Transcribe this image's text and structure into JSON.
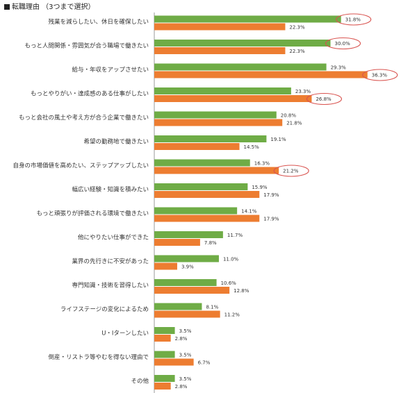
{
  "chart_data": {
    "type": "bar",
    "orientation": "horizontal",
    "title": "転職理由 （3つまで選択）",
    "categories": [
      "残業を減らしたい、休日を確保したい",
      "もっと人間関係・雰囲気が合う職場で働きたい",
      "給与・年収をアップさせたい",
      "もっとやりがい・達成感のある仕事がしたい",
      "もっと会社の風土や考え方が合う企業で働きたい",
      "希望の勤務地で働きたい",
      "自身の市場価値を高めたい、ステップアップしたい",
      "幅広い経験・知識を積みたい",
      "もっと頑張りが評価される環境で働きたい",
      "他にやりたい仕事ができた",
      "業界の先行きに不安があった",
      "専門知識・技術を習得したい",
      "ライフステージの変化によるため",
      "U・Iターンしたい",
      "倒産・リストラ等やむを得ない理由で",
      "その他"
    ],
    "series": [
      {
        "color": "#6fac46",
        "values": [
          31.8,
          30.0,
          29.3,
          23.3,
          20.8,
          19.1,
          16.3,
          15.9,
          14.1,
          11.7,
          11.0,
          10.6,
          8.1,
          3.5,
          3.5,
          3.5
        ],
        "labels": [
          "31.8%",
          "30.0%",
          "29.3%",
          "23.3%",
          "20.8%",
          "19.1%",
          "16.3%",
          "15.9%",
          "14.1%",
          "11.7%",
          "11.0%",
          "10.6%",
          "8.1%",
          "3.5%",
          "3.5%",
          "3.5%"
        ]
      },
      {
        "color": "#ed7d31",
        "values": [
          22.3,
          22.3,
          36.3,
          26.8,
          21.8,
          14.5,
          21.2,
          17.9,
          17.9,
          7.8,
          3.9,
          12.8,
          11.2,
          2.8,
          6.7,
          2.8
        ],
        "labels": [
          "22.3%",
          "22.3%",
          "36.3%",
          "26.8%",
          "21.8%",
          "14.5%",
          "21.2%",
          "17.9%",
          "17.9%",
          "7.8%",
          "3.9%",
          "12.8%",
          "11.2%",
          "2.8%",
          "6.7%",
          "2.8%"
        ]
      }
    ],
    "highlighted": [
      {
        "series": 0,
        "index": 0
      },
      {
        "series": 0,
        "index": 1
      },
      {
        "series": 1,
        "index": 2
      },
      {
        "series": 1,
        "index": 3
      },
      {
        "series": 1,
        "index": 6
      }
    ],
    "highlight_color": "#d9534f",
    "axis_color": "#999999",
    "xlim": [
      0,
      40
    ],
    "grid": false,
    "legend": "none"
  }
}
